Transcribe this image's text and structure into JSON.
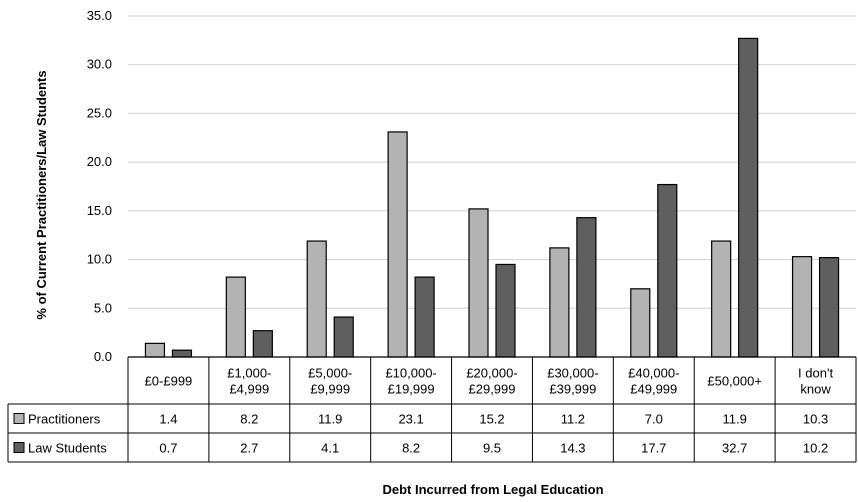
{
  "chart_data": {
    "type": "bar",
    "title": "",
    "xlabel": "Debt Incurred from Legal Education",
    "ylabel": "% of Current Practitioners/Law Students",
    "ylim": [
      0,
      35
    ],
    "ytick_step": 5,
    "ytick_labels": [
      "0.0",
      "5.0",
      "10.0",
      "15.0",
      "20.0",
      "25.0",
      "30.0",
      "35.0"
    ],
    "grid": true,
    "legend": "data-table-left",
    "categories": [
      [
        "£0-£999"
      ],
      [
        "£1,000-",
        "£4,999"
      ],
      [
        "£5,000-",
        "£9,999"
      ],
      [
        "£10,000-",
        "£19,999"
      ],
      [
        "£20,000-",
        "£29,999"
      ],
      [
        "£30,000-",
        "£39,999"
      ],
      [
        "£40,000-",
        "£49,999"
      ],
      [
        "£50,000+"
      ],
      [
        "I don't",
        "know"
      ]
    ],
    "series": [
      {
        "name": "Practitioners",
        "color": "#b3b3b3",
        "values": [
          1.4,
          8.2,
          11.9,
          23.1,
          15.2,
          11.2,
          7.0,
          11.9,
          10.3
        ],
        "labels": [
          "1.4",
          "8.2",
          "11.9",
          "23.1",
          "15.2",
          "11.2",
          "7.0",
          "11.9",
          "10.3"
        ]
      },
      {
        "name": "Law Students",
        "color": "#5f5f5f",
        "values": [
          0.7,
          2.7,
          4.1,
          8.2,
          9.5,
          14.3,
          17.7,
          32.7,
          10.2
        ],
        "labels": [
          "0.7",
          "2.7",
          "4.1",
          "8.2",
          "9.5",
          "14.3",
          "17.7",
          "32.7",
          "10.2"
        ]
      }
    ]
  }
}
